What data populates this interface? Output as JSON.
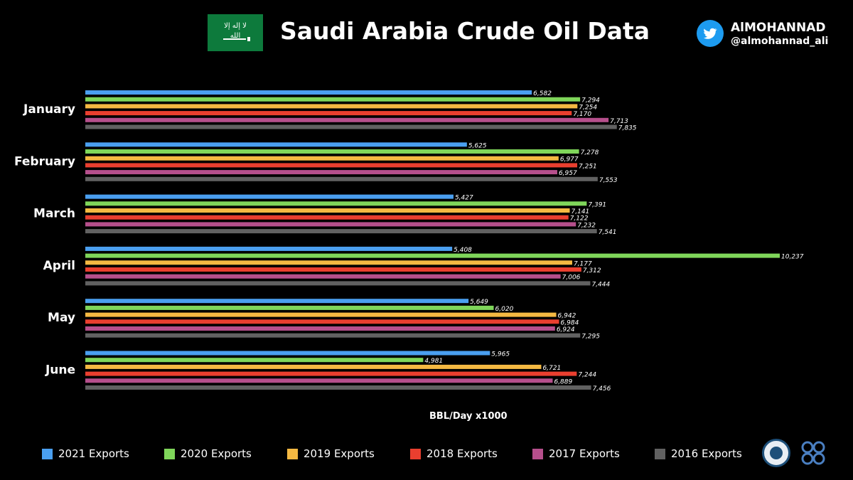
{
  "header": {
    "title": "Saudi Arabia Crude Oil Data",
    "flag_text": "لا إله إلا الله",
    "handle_name": "AlMOHANNAD",
    "handle_at": "@almohannad_ali"
  },
  "icons": {
    "twitter": "twitter-bird-icon",
    "seal": "ministry-seal-icon",
    "opec": "opec-logo-icon"
  },
  "chart_data": {
    "type": "bar",
    "orientation": "horizontal",
    "title": "Saudi Arabia Crude Oil Data",
    "xlabel": "BBL/Day x1000",
    "categories": [
      "January",
      "February",
      "March",
      "April",
      "May",
      "June"
    ],
    "xlim": [
      0,
      10237
    ],
    "grid": false,
    "legend_position": "bottom",
    "series": [
      {
        "name": "2021 Exports",
        "color": "#4a9ff0",
        "values": [
          6582,
          5625,
          5427,
          5408,
          5649,
          5965
        ]
      },
      {
        "name": "2020 Exports",
        "color": "#7fd65a",
        "values": [
          7294,
          7278,
          7391,
          10237,
          6020,
          4981
        ]
      },
      {
        "name": "2019 Exports",
        "color": "#f5b942",
        "values": [
          7254,
          6977,
          7141,
          7177,
          6942,
          6721
        ]
      },
      {
        "name": "2018 Exports",
        "color": "#ea3f2f",
        "values": [
          7170,
          7251,
          7122,
          7312,
          6984,
          7244
        ]
      },
      {
        "name": "2017 Exports",
        "color": "#b64f8c",
        "values": [
          7713,
          6957,
          7232,
          7006,
          6924,
          6889
        ]
      },
      {
        "name": "2016 Exports",
        "color": "#616161",
        "values": [
          7835,
          7553,
          7541,
          7444,
          7295,
          7456
        ]
      }
    ]
  }
}
